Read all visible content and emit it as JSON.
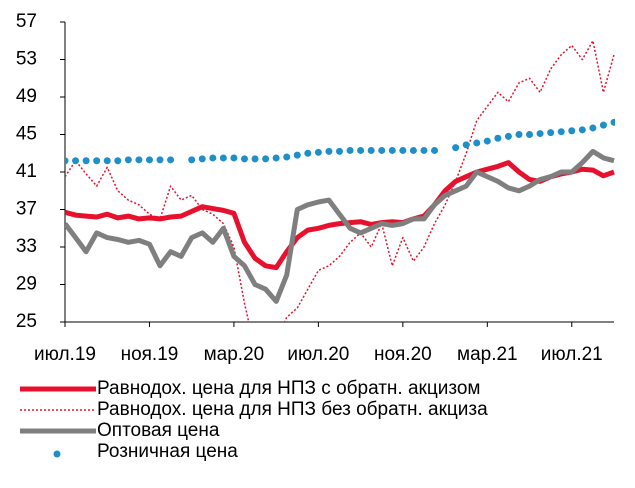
{
  "chart_data": {
    "type": "line",
    "categories": [
      "июл.19",
      null,
      null,
      null,
      null,
      null,
      null,
      null,
      "ноя.19",
      null,
      null,
      null,
      null,
      null,
      null,
      null,
      "мар.20",
      null,
      null,
      null,
      null,
      null,
      null,
      null,
      "июл.20",
      null,
      null,
      null,
      null,
      null,
      null,
      null,
      "ноя.20",
      null,
      null,
      null,
      null,
      null,
      null,
      null,
      "мар.21",
      null,
      null,
      null,
      null,
      null,
      null,
      null,
      "июл.21",
      null,
      null,
      null,
      null
    ],
    "ylim": [
      25,
      57
    ],
    "yticks": [
      25,
      29,
      33,
      37,
      41,
      45,
      49,
      53,
      57
    ],
    "series": [
      {
        "name": "Равнодох. цена для НПЗ с обратн. акцизом",
        "color": "#e8112d",
        "style": "solid",
        "width": 5,
        "values": [
          36.7,
          36.4,
          36.3,
          36.2,
          36.5,
          36.1,
          36.3,
          36.0,
          36.1,
          36.0,
          36.2,
          36.3,
          36.8,
          37.3,
          37.1,
          36.9,
          36.6,
          33.5,
          31.8,
          31.0,
          30.8,
          32.5,
          34.0,
          34.8,
          35.0,
          35.3,
          35.5,
          35.6,
          35.7,
          35.4,
          35.6,
          35.7,
          35.6,
          36.0,
          36.3,
          37.5,
          39.0,
          40.0,
          40.5,
          41.0,
          41.3,
          41.6,
          42.0,
          41.0,
          40.2,
          40.0,
          40.5,
          40.8,
          41.0,
          41.3,
          41.2,
          40.6,
          41.0
        ]
      },
      {
        "name": "Равнодох. цена для НПЗ без обратн. акциза",
        "color": "#e8112d",
        "style": "dotted",
        "width": 1.5,
        "values": [
          40.5,
          42.2,
          40.8,
          39.5,
          41.5,
          39.0,
          38.0,
          37.5,
          36.5,
          36.0,
          39.5,
          38.0,
          38.5,
          37.0,
          36.5,
          35.5,
          33.0,
          27.0,
          22.0,
          21.0,
          23.0,
          25.5,
          26.5,
          28.5,
          30.5,
          31.0,
          32.0,
          33.5,
          34.5,
          33.0,
          35.5,
          31.0,
          34.0,
          31.5,
          33.0,
          35.5,
          37.5,
          40.0,
          43.0,
          46.5,
          48.0,
          49.5,
          48.5,
          50.5,
          51.0,
          49.5,
          52.0,
          53.5,
          54.5,
          53.0,
          55.0,
          49.5,
          53.5
        ]
      },
      {
        "name": "Оптовая цена",
        "color": "#7f7f7f",
        "style": "solid",
        "width": 5,
        "values": [
          35.5,
          34.0,
          32.5,
          34.5,
          34.0,
          33.8,
          33.5,
          33.7,
          33.3,
          31.0,
          32.5,
          32.0,
          34.0,
          34.5,
          33.5,
          35.0,
          32.0,
          31.0,
          29.0,
          28.5,
          27.2,
          30.0,
          37.0,
          37.5,
          37.8,
          38.0,
          36.5,
          35.0,
          34.5,
          35.0,
          35.5,
          35.3,
          35.5,
          36.0,
          36.0,
          37.5,
          38.5,
          39.0,
          39.5,
          41.0,
          40.5,
          40.0,
          39.3,
          39.0,
          39.5,
          40.2,
          40.5,
          41.0,
          41.0,
          42.0,
          43.2,
          42.5,
          42.2
        ]
      },
      {
        "name": "Розничная цена",
        "color": "#1f8fc8",
        "style": "dots",
        "width": 3.5,
        "values": [
          42.2,
          42.2,
          42.2,
          42.2,
          42.2,
          42.2,
          42.3,
          42.3,
          42.3,
          42.3,
          42.3,
          null,
          42.3,
          42.4,
          42.5,
          42.5,
          42.5,
          42.4,
          42.4,
          42.4,
          42.5,
          42.6,
          42.8,
          43.0,
          43.1,
          43.2,
          43.2,
          43.3,
          43.3,
          43.3,
          43.3,
          43.3,
          43.3,
          43.3,
          43.3,
          43.3,
          null,
          43.6,
          43.9,
          44.1,
          44.3,
          44.6,
          44.8,
          45.0,
          45.0,
          45.1,
          45.2,
          45.3,
          45.4,
          45.5,
          45.7,
          46.0,
          46.3
        ]
      }
    ]
  }
}
